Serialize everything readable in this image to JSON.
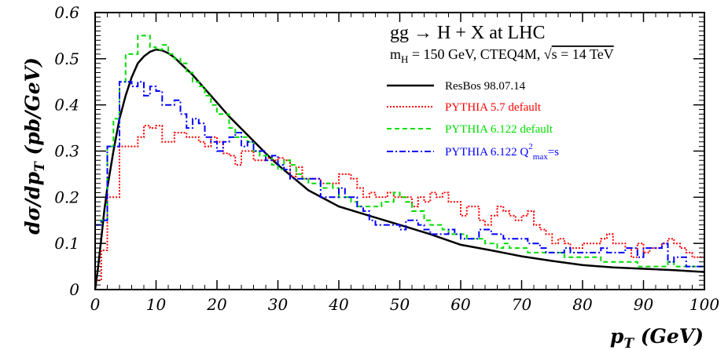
{
  "chart_data": {
    "type": "line",
    "title": "gg → H + X at LHC",
    "subtitle": {
      "mass": "m",
      "mass_sub": "H",
      "mass_rest": " = 150 GeV, CTEQ4M, ",
      "sqrt": "√",
      "energy": "s = 14 TeV"
    },
    "xlabel": {
      "main": "p",
      "sub": "T",
      "unit": " (GeV)"
    },
    "ylabel": {
      "prefix": "dσ/dp",
      "sub": "T",
      "unit": "  (pb/GeV)"
    },
    "xlim": [
      0,
      100
    ],
    "ylim": [
      0,
      0.6
    ],
    "x_ticks": [
      "0",
      "10",
      "20",
      "30",
      "40",
      "50",
      "60",
      "70",
      "80",
      "90",
      "100"
    ],
    "y_ticks": [
      "0",
      "0.1",
      "0.2",
      "0.3",
      "0.4",
      "0.5",
      "0.6"
    ],
    "grid": false,
    "legend_position": "top-right",
    "series": [
      {
        "name": "ResBos 98.07.14",
        "style": "solid",
        "color": "#000000",
        "x": [
          0,
          0.5,
          1,
          1.5,
          2,
          3,
          4,
          5,
          6,
          7,
          8,
          9,
          10,
          11,
          12,
          13,
          14,
          16,
          18,
          20,
          22,
          25,
          28,
          30,
          35,
          40,
          45,
          50,
          55,
          60,
          65,
          70,
          75,
          80,
          85,
          90,
          95,
          100
        ],
        "y": [
          0,
          0.05,
          0.11,
          0.17,
          0.22,
          0.3,
          0.37,
          0.42,
          0.46,
          0.49,
          0.505,
          0.515,
          0.52,
          0.518,
          0.512,
          0.503,
          0.49,
          0.465,
          0.435,
          0.405,
          0.375,
          0.335,
          0.295,
          0.27,
          0.215,
          0.18,
          0.16,
          0.14,
          0.12,
          0.097,
          0.085,
          0.072,
          0.062,
          0.053,
          0.048,
          0.045,
          0.042,
          0.038
        ]
      },
      {
        "name": "PYTHIA 5.7 default",
        "style": "dotted",
        "color": "#ff0000",
        "bin_edges": [
          0,
          1,
          2,
          3,
          4,
          5,
          6,
          7,
          8,
          9,
          10,
          11,
          12,
          13,
          14,
          15,
          16,
          17,
          18,
          19,
          20,
          21,
          22,
          23,
          24,
          25,
          26,
          27,
          28,
          29,
          30,
          31,
          32,
          33,
          34,
          35,
          36,
          37,
          38,
          39,
          40,
          41,
          42,
          43,
          44,
          45,
          46,
          47,
          48,
          49,
          50,
          51,
          52,
          53,
          54,
          55,
          56,
          57,
          58,
          59,
          60,
          61,
          62,
          63,
          64,
          65,
          66,
          67,
          68,
          69,
          70,
          71,
          72,
          73,
          74,
          75,
          76,
          77,
          78,
          79,
          80,
          81,
          82,
          83,
          84,
          85,
          86,
          87,
          88,
          89,
          90,
          91,
          92,
          93,
          94,
          95,
          96,
          97,
          98,
          99,
          100
        ],
        "values": [
          0.02,
          0.085,
          0.2,
          0.2,
          0.31,
          0.31,
          0.31,
          0.33,
          0.355,
          0.35,
          0.355,
          0.32,
          0.32,
          0.34,
          0.34,
          0.33,
          0.33,
          0.32,
          0.31,
          0.33,
          0.32,
          0.295,
          0.29,
          0.27,
          0.3,
          0.3,
          0.28,
          0.28,
          0.285,
          0.28,
          0.285,
          0.28,
          0.245,
          0.265,
          0.24,
          0.24,
          0.24,
          0.23,
          0.23,
          0.23,
          0.25,
          0.25,
          0.24,
          0.22,
          0.2,
          0.21,
          0.2,
          0.2,
          0.21,
          0.2,
          0.2,
          0.2,
          0.18,
          0.2,
          0.19,
          0.21,
          0.2,
          0.21,
          0.19,
          0.19,
          0.16,
          0.18,
          0.18,
          0.15,
          0.14,
          0.16,
          0.18,
          0.17,
          0.16,
          0.15,
          0.16,
          0.17,
          0.14,
          0.13,
          0.12,
          0.1,
          0.11,
          0.1,
          0.09,
          0.09,
          0.1,
          0.1,
          0.1,
          0.11,
          0.12,
          0.1,
          0.1,
          0.09,
          0.07,
          0.1,
          0.08,
          0.09,
          0.09,
          0.1,
          0.11,
          0.1,
          0.09,
          0.08,
          0.07,
          0.07
        ]
      },
      {
        "name": "PYTHIA 6.122 default",
        "style": "dashed",
        "color": "#00dd00",
        "bin_edges": [
          0,
          1,
          2,
          3,
          4,
          5,
          6,
          7,
          8,
          9,
          10,
          11,
          12,
          13,
          14,
          15,
          16,
          17,
          18,
          19,
          20,
          21,
          22,
          23,
          24,
          25,
          26,
          27,
          28,
          29,
          30,
          31,
          32,
          33,
          34,
          35,
          36,
          37,
          38,
          39,
          40,
          41,
          42,
          43,
          44,
          45,
          46,
          47,
          48,
          49,
          50,
          51,
          52,
          53,
          54,
          55,
          56,
          57,
          58,
          59,
          60,
          61,
          62,
          63,
          64,
          65,
          66,
          67,
          68,
          69,
          70,
          71,
          72,
          73,
          74,
          75,
          76,
          77,
          78,
          79,
          80,
          81,
          82,
          83,
          84,
          85,
          86,
          87,
          88,
          89,
          90,
          91,
          92,
          93,
          94,
          95,
          96,
          97,
          98,
          99,
          100
        ],
        "values": [
          0.14,
          0.15,
          0.31,
          0.37,
          0.45,
          0.51,
          0.51,
          0.55,
          0.55,
          0.525,
          0.52,
          0.53,
          0.51,
          0.5,
          0.49,
          0.47,
          0.45,
          0.44,
          0.42,
          0.4,
          0.38,
          0.38,
          0.35,
          0.33,
          0.33,
          0.32,
          0.3,
          0.29,
          0.29,
          0.27,
          0.26,
          0.28,
          0.27,
          0.25,
          0.24,
          0.23,
          0.23,
          0.22,
          0.23,
          0.22,
          0.2,
          0.2,
          0.19,
          0.18,
          0.18,
          0.18,
          0.18,
          0.19,
          0.19,
          0.21,
          0.2,
          0.19,
          0.17,
          0.17,
          0.15,
          0.14,
          0.14,
          0.13,
          0.12,
          0.12,
          0.12,
          0.11,
          0.11,
          0.11,
          0.1,
          0.1,
          0.09,
          0.1,
          0.09,
          0.09,
          0.09,
          0.08,
          0.08,
          0.08,
          0.08,
          0.08,
          0.08,
          0.07,
          0.07,
          0.07,
          0.07,
          0.07,
          0.07,
          0.06,
          0.06,
          0.06,
          0.06,
          0.06,
          0.06,
          0.05,
          0.05,
          0.05,
          0.05,
          0.05,
          0.06,
          0.05,
          0.05,
          0.05,
          0.05,
          0.05
        ]
      },
      {
        "name": "PYTHIA 6.122 Q",
        "name_sup": "2",
        "name_sub": "max",
        "name_tail": "=s",
        "style": "dashdot",
        "color": "#0000ff",
        "bin_edges": [
          0,
          1,
          2,
          3,
          4,
          5,
          6,
          7,
          8,
          9,
          10,
          11,
          12,
          13,
          14,
          15,
          16,
          17,
          18,
          19,
          20,
          21,
          22,
          23,
          24,
          25,
          26,
          27,
          28,
          29,
          30,
          31,
          32,
          33,
          34,
          35,
          36,
          37,
          38,
          39,
          40,
          41,
          42,
          43,
          44,
          45,
          46,
          47,
          48,
          49,
          50,
          51,
          52,
          53,
          54,
          55,
          56,
          57,
          58,
          59,
          60,
          61,
          62,
          63,
          64,
          65,
          66,
          67,
          68,
          69,
          70,
          71,
          72,
          73,
          74,
          75,
          76,
          77,
          78,
          79,
          80,
          81,
          82,
          83,
          84,
          85,
          86,
          87,
          88,
          89,
          90,
          91,
          92,
          93,
          94,
          95,
          96,
          97,
          98,
          99,
          100
        ],
        "values": [
          0.14,
          0.15,
          0.31,
          0.31,
          0.45,
          0.45,
          0.44,
          0.45,
          0.42,
          0.44,
          0.43,
          0.4,
          0.4,
          0.41,
          0.38,
          0.35,
          0.37,
          0.36,
          0.33,
          0.32,
          0.3,
          0.32,
          0.33,
          0.34,
          0.31,
          0.32,
          0.3,
          0.3,
          0.28,
          0.29,
          0.27,
          0.26,
          0.24,
          0.24,
          0.24,
          0.24,
          0.24,
          0.2,
          0.2,
          0.2,
          0.22,
          0.2,
          0.2,
          0.18,
          0.17,
          0.15,
          0.14,
          0.14,
          0.14,
          0.14,
          0.13,
          0.15,
          0.15,
          0.14,
          0.13,
          0.12,
          0.12,
          0.12,
          0.13,
          0.12,
          0.11,
          0.11,
          0.11,
          0.13,
          0.13,
          0.12,
          0.12,
          0.11,
          0.11,
          0.11,
          0.11,
          0.1,
          0.1,
          0.09,
          0.08,
          0.08,
          0.08,
          0.09,
          0.08,
          0.08,
          0.08,
          0.08,
          0.08,
          0.09,
          0.08,
          0.08,
          0.08,
          0.09,
          0.09,
          0.07,
          0.09,
          0.09,
          0.09,
          0.1,
          0.06,
          0.07,
          0.07,
          0.05,
          0.05,
          0.05
        ]
      }
    ]
  }
}
